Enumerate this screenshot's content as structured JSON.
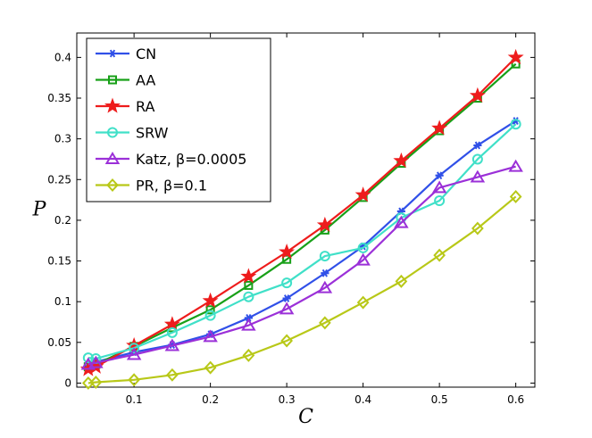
{
  "chart_data": {
    "type": "line",
    "title": "",
    "xlabel": "C",
    "ylabel": "P",
    "xlim": [
      0.025,
      0.625
    ],
    "ylim": [
      -0.005,
      0.43
    ],
    "x_ticks": [
      0.1,
      0.2,
      0.3,
      0.4,
      0.5,
      0.6
    ],
    "x_tick_labels": [
      "0.1",
      "0.2",
      "0.3",
      "0.4",
      "0.5",
      "0.6"
    ],
    "y_ticks": [
      0,
      0.05,
      0.1,
      0.15,
      0.2,
      0.25,
      0.3,
      0.35,
      0.4
    ],
    "y_tick_labels": [
      "0",
      "0.05",
      "0.1",
      "0.15",
      "0.2",
      "0.25",
      "0.3",
      "0.35",
      "0.4"
    ],
    "grid": false,
    "legend_position": "top-left",
    "series": [
      {
        "name": "CN",
        "color": "#3050e8",
        "marker": "asterisk",
        "x": [
          0.04,
          0.05,
          0.1,
          0.15,
          0.2,
          0.25,
          0.3,
          0.35,
          0.4,
          0.45,
          0.5,
          0.55,
          0.6
        ],
        "values": [
          0.021,
          0.026,
          0.038,
          0.047,
          0.06,
          0.08,
          0.104,
          0.135,
          0.168,
          0.211,
          0.255,
          0.292,
          0.322
        ]
      },
      {
        "name": "AA",
        "color": "#18a018",
        "marker": "square",
        "x": [
          0.04,
          0.05,
          0.1,
          0.15,
          0.2,
          0.25,
          0.3,
          0.35,
          0.4,
          0.45,
          0.5,
          0.55,
          0.6
        ],
        "values": [
          0.02,
          0.023,
          0.045,
          0.068,
          0.09,
          0.12,
          0.152,
          0.188,
          0.228,
          0.27,
          0.31,
          0.35,
          0.392
        ]
      },
      {
        "name": "RA",
        "color": "#ee1c1c",
        "marker": "star",
        "x": [
          0.04,
          0.05,
          0.1,
          0.15,
          0.2,
          0.25,
          0.3,
          0.35,
          0.4,
          0.45,
          0.5,
          0.55,
          0.6
        ],
        "values": [
          0.017,
          0.02,
          0.046,
          0.072,
          0.101,
          0.131,
          0.161,
          0.194,
          0.231,
          0.273,
          0.313,
          0.353,
          0.4
        ]
      },
      {
        "name": "SRW",
        "color": "#40e0c8",
        "marker": "circle",
        "x": [
          0.04,
          0.05,
          0.1,
          0.15,
          0.2,
          0.25,
          0.3,
          0.35,
          0.4,
          0.45,
          0.5,
          0.55,
          0.6
        ],
        "values": [
          0.031,
          0.03,
          0.043,
          0.062,
          0.083,
          0.106,
          0.123,
          0.156,
          0.166,
          0.203,
          0.224,
          0.275,
          0.318
        ]
      },
      {
        "name": "Katz, β=0.0005",
        "color": "#9b30d8",
        "marker": "triangle",
        "x": [
          0.04,
          0.05,
          0.1,
          0.15,
          0.2,
          0.25,
          0.3,
          0.35,
          0.4,
          0.45,
          0.5,
          0.55,
          0.6
        ],
        "values": [
          0.023,
          0.025,
          0.035,
          0.046,
          0.057,
          0.071,
          0.091,
          0.117,
          0.151,
          0.197,
          0.24,
          0.253,
          0.266
        ]
      },
      {
        "name": "PR, β=0.1",
        "color": "#b8c818",
        "marker": "diamond",
        "x": [
          0.04,
          0.05,
          0.1,
          0.15,
          0.2,
          0.25,
          0.3,
          0.35,
          0.4,
          0.45,
          0.5,
          0.55,
          0.6
        ],
        "values": [
          0.0,
          0.001,
          0.004,
          0.01,
          0.019,
          0.034,
          0.052,
          0.074,
          0.099,
          0.125,
          0.157,
          0.19,
          0.229
        ]
      }
    ]
  }
}
